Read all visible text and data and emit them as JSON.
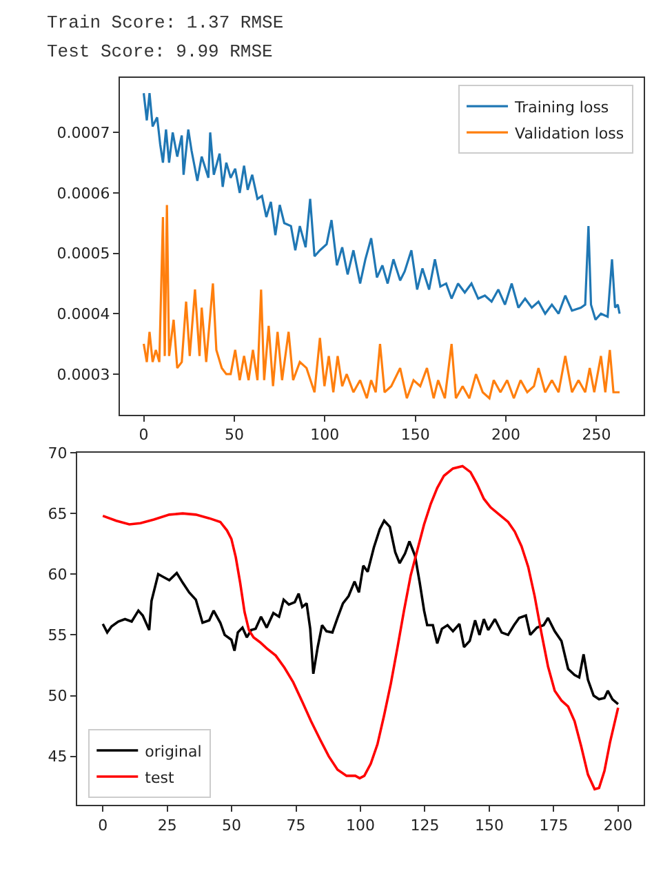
{
  "chart_data": [
    {
      "type": "line",
      "annotations": [
        "Train Score: 1.37 RMSE",
        "Test Score: 9.99 RMSE"
      ],
      "xlim": [
        -13.2,
        276.2
      ],
      "ylim": [
        0.000233,
        0.00079
      ],
      "xticks": [
        0,
        50,
        100,
        150,
        200,
        250
      ],
      "yticks": [
        0.0003,
        0.0004,
        0.0005,
        0.0006,
        0.0007
      ],
      "legend": "top right",
      "series": [
        {
          "name": "Training loss",
          "color": "#1f77b4",
          "x": [
            0,
            1.7,
            3.2,
            4.9,
            7.4,
            9.1,
            10.6,
            12.3,
            14,
            16,
            18.5,
            21,
            22,
            24.6,
            26.4,
            29.6,
            32,
            35.7,
            36.7,
            38.7,
            41.9,
            43.6,
            45.6,
            48,
            50.5,
            53,
            55.4,
            57.4,
            59.9,
            62.8,
            65.3,
            67.7,
            70.2,
            72.7,
            75.1,
            77.6,
            81.3,
            83.7,
            86.2,
            89.4,
            91.9,
            94.3,
            97.3,
            101,
            103.7,
            106.7,
            109.6,
            112.6,
            115.8,
            119.5,
            122.4,
            125.6,
            128.8,
            131.8,
            134.7,
            137.9,
            141.6,
            144.1,
            147.8,
            151,
            153.9,
            157.6,
            160.8,
            163.8,
            167,
            170,
            173.6,
            177.3,
            181,
            184.7,
            188.4,
            192.1,
            195.8,
            199.5,
            203.2,
            206.9,
            210.6,
            214.3,
            218,
            221.7,
            225.4,
            229.1,
            232.8,
            236.5,
            241.4,
            243.8,
            245.6,
            247,
            249.5,
            252.5,
            256.2,
            258.6,
            260.3,
            261.8,
            262.8
          ],
          "values": [
            0.000765,
            0.00072,
            0.000765,
            0.00071,
            0.000725,
            0.00068,
            0.00065,
            0.000705,
            0.00065,
            0.0007,
            0.00066,
            0.000695,
            0.00063,
            0.000705,
            0.00067,
            0.00062,
            0.00066,
            0.000625,
            0.0007,
            0.00063,
            0.000665,
            0.00061,
            0.00065,
            0.000625,
            0.00064,
            0.0006,
            0.000645,
            0.000605,
            0.00063,
            0.00059,
            0.000595,
            0.00056,
            0.000585,
            0.00053,
            0.00058,
            0.00055,
            0.000545,
            0.000505,
            0.000545,
            0.00051,
            0.00059,
            0.000495,
            0.000505,
            0.000515,
            0.000555,
            0.00048,
            0.00051,
            0.000465,
            0.000505,
            0.00045,
            0.00049,
            0.000525,
            0.00046,
            0.00048,
            0.00045,
            0.00049,
            0.000455,
            0.00047,
            0.000505,
            0.00044,
            0.000475,
            0.00044,
            0.00049,
            0.000445,
            0.00045,
            0.000425,
            0.00045,
            0.000435,
            0.00045,
            0.000425,
            0.00043,
            0.00042,
            0.00044,
            0.000415,
            0.00045,
            0.00041,
            0.000425,
            0.00041,
            0.00042,
            0.0004,
            0.000415,
            0.0004,
            0.00043,
            0.000405,
            0.00041,
            0.000415,
            0.000545,
            0.000415,
            0.00039,
            0.0004,
            0.000395,
            0.00049,
            0.00041,
            0.000415,
            0.0004
          ]
        },
        {
          "name": "Validation loss",
          "color": "#ff7f0e",
          "x": [
            0,
            1.7,
            3.2,
            4.9,
            6.7,
            8.6,
            10.6,
            11.6,
            12.8,
            14,
            16.5,
            18.5,
            21,
            23.4,
            25.4,
            28.3,
            30.8,
            32,
            34.5,
            38.2,
            40.1,
            43.1,
            45.6,
            48,
            50.5,
            53,
            55.4,
            57.9,
            60.3,
            62.8,
            64.8,
            66.5,
            69,
            71.4,
            73.9,
            76.4,
            80,
            82.5,
            86.2,
            89.9,
            94.3,
            97.3,
            99.8,
            102.2,
            104.7,
            107.1,
            109.6,
            112.1,
            115.8,
            119.5,
            123.2,
            125.6,
            128.1,
            130.5,
            133,
            136.7,
            141.6,
            145.3,
            149,
            152.7,
            156.4,
            160.1,
            162.6,
            166.3,
            170,
            172.4,
            176.1,
            179.8,
            183.5,
            187.2,
            190.9,
            193.3,
            197,
            200.7,
            204.4,
            208.1,
            211.8,
            215.5,
            218,
            221.7,
            225.4,
            229.1,
            232.8,
            236.5,
            240.1,
            243.8,
            246.3,
            248.8,
            252.5,
            254.9,
            257.4,
            259.4,
            262.8
          ],
          "values": [
            0.00035,
            0.00032,
            0.00037,
            0.00032,
            0.00034,
            0.00032,
            0.00056,
            0.00033,
            0.00058,
            0.00033,
            0.00039,
            0.00031,
            0.00032,
            0.00042,
            0.00033,
            0.00044,
            0.00033,
            0.00041,
            0.00032,
            0.00045,
            0.00034,
            0.00031,
            0.0003,
            0.0003,
            0.00034,
            0.00029,
            0.00033,
            0.00029,
            0.00034,
            0.00029,
            0.00044,
            0.00029,
            0.00038,
            0.00028,
            0.00037,
            0.00029,
            0.00037,
            0.00029,
            0.00032,
            0.00031,
            0.00027,
            0.00036,
            0.00028,
            0.00033,
            0.00027,
            0.00033,
            0.00028,
            0.0003,
            0.00027,
            0.00029,
            0.00026,
            0.00029,
            0.00027,
            0.00035,
            0.00027,
            0.00028,
            0.00031,
            0.00026,
            0.00029,
            0.00028,
            0.00031,
            0.00026,
            0.00029,
            0.00026,
            0.00035,
            0.00026,
            0.00028,
            0.00026,
            0.0003,
            0.00027,
            0.00026,
            0.00029,
            0.00027,
            0.00029,
            0.00026,
            0.00029,
            0.00027,
            0.00028,
            0.00031,
            0.00027,
            0.00029,
            0.00027,
            0.00033,
            0.00027,
            0.00029,
            0.00027,
            0.00031,
            0.00027,
            0.00033,
            0.00027,
            0.00034,
            0.00027,
            0.00027
          ]
        }
      ]
    },
    {
      "type": "line",
      "xlim": [
        -10,
        210
      ],
      "ylim": [
        41,
        70
      ],
      "xticks": [
        0,
        25,
        50,
        75,
        100,
        125,
        150,
        175,
        200
      ],
      "yticks": [
        45,
        50,
        55,
        60,
        65,
        70
      ],
      "legend": "bottom left",
      "series": [
        {
          "name": "original",
          "color": "#000000",
          "x": [
            0,
            1.7,
            3.4,
            6,
            8.6,
            11.2,
            13.8,
            15.5,
            18,
            18.9,
            21.5,
            23.2,
            25.8,
            28.7,
            31,
            33.5,
            36.1,
            38.7,
            41.3,
            43,
            45.6,
            47.3,
            49.9,
            51.1,
            52.4,
            54.2,
            55.9,
            57.6,
            59.3,
            61.4,
            63.6,
            66.2,
            68.4,
            70.2,
            72.2,
            74.5,
            76,
            77.4,
            79.1,
            80.5,
            81.7,
            83.4,
            85.1,
            86.8,
            89.1,
            91.1,
            93.2,
            95.4,
            97.7,
            99.4,
            101.1,
            102.8,
            105.2,
            107.5,
            109.2,
            111.4,
            113.5,
            115.2,
            117.3,
            119,
            121.2,
            123,
            124.7,
            125.9,
            128.1,
            129.8,
            131.6,
            133.8,
            135.9,
            138.4,
            140.2,
            142.4,
            144.5,
            146.2,
            147.9,
            149.6,
            152.2,
            154.8,
            157.3,
            159.6,
            161.6,
            164.2,
            165.9,
            168.5,
            171.1,
            172.8,
            175.4,
            178,
            180.6,
            183.1,
            184.9,
            186.6,
            188.3,
            190.5,
            192.6,
            194.7,
            196,
            197.8,
            200
          ],
          "values": [
            55.9,
            55.2,
            55.7,
            56.1,
            56.3,
            56.1,
            57.0,
            56.6,
            55.4,
            57.8,
            60.0,
            59.8,
            59.5,
            60.1,
            59.3,
            58.5,
            57.9,
            56.0,
            56.2,
            57.0,
            56.0,
            55.0,
            54.6,
            53.7,
            55.2,
            55.6,
            54.8,
            55.4,
            55.5,
            56.5,
            55.6,
            56.8,
            56.5,
            57.9,
            57.5,
            57.7,
            58.4,
            57.3,
            57.6,
            55.5,
            51.8,
            54.0,
            55.8,
            55.3,
            55.2,
            56.4,
            57.6,
            58.2,
            59.4,
            58.5,
            60.7,
            60.2,
            62.2,
            63.7,
            64.4,
            63.9,
            61.8,
            60.9,
            61.7,
            62.7,
            61.5,
            59.3,
            57.0,
            55.8,
            55.8,
            54.3,
            55.5,
            55.8,
            55.3,
            55.9,
            54.0,
            54.5,
            56.2,
            55.0,
            56.3,
            55.4,
            56.3,
            55.2,
            55.0,
            55.8,
            56.4,
            56.6,
            55.0,
            55.6,
            55.8,
            56.4,
            55.3,
            54.5,
            52.2,
            51.7,
            51.5,
            53.4,
            51.3,
            50.0,
            49.7,
            49.8,
            50.4,
            49.7,
            49.3
          ]
        },
        {
          "name": "test",
          "color": "#ff0000",
          "x": [
            0,
            5.2,
            10.3,
            14.6,
            19.8,
            25.8,
            31,
            36.1,
            41.3,
            45.6,
            48.2,
            49.9,
            51.6,
            53.3,
            55,
            56.7,
            58.5,
            61,
            63.6,
            67.1,
            70.5,
            73.9,
            77.4,
            80.8,
            84.3,
            87.7,
            91.1,
            94.6,
            98,
            99.7,
            101.5,
            104,
            106.6,
            109.2,
            111.8,
            114.4,
            116.9,
            119.5,
            122.1,
            124.7,
            127.3,
            129.8,
            132.4,
            135.9,
            139.6,
            142.7,
            145.3,
            147.9,
            150.5,
            153.9,
            157.3,
            159.9,
            162.5,
            165.1,
            167.6,
            170.2,
            172.8,
            175.4,
            178,
            180.6,
            183.1,
            185.7,
            188.3,
            190.9,
            192.6,
            194.7,
            196.9,
            200
          ],
          "values": [
            64.8,
            64.4,
            64.1,
            64.2,
            64.5,
            64.9,
            65.0,
            64.9,
            64.6,
            64.3,
            63.6,
            62.9,
            61.4,
            59.3,
            56.9,
            55.4,
            54.8,
            54.4,
            53.9,
            53.3,
            52.3,
            51.1,
            49.5,
            47.9,
            46.4,
            45.0,
            43.9,
            43.4,
            43.4,
            43.2,
            43.4,
            44.4,
            46.0,
            48.4,
            51.0,
            54.0,
            57.0,
            59.9,
            62.0,
            64.1,
            65.8,
            67.1,
            68.1,
            68.7,
            68.9,
            68.4,
            67.4,
            66.2,
            65.5,
            64.9,
            64.3,
            63.5,
            62.3,
            60.6,
            58.2,
            55.2,
            52.4,
            50.4,
            49.6,
            49.1,
            47.9,
            45.8,
            43.5,
            42.3,
            42.4,
            43.8,
            46.2,
            49.0
          ]
        }
      ]
    }
  ]
}
